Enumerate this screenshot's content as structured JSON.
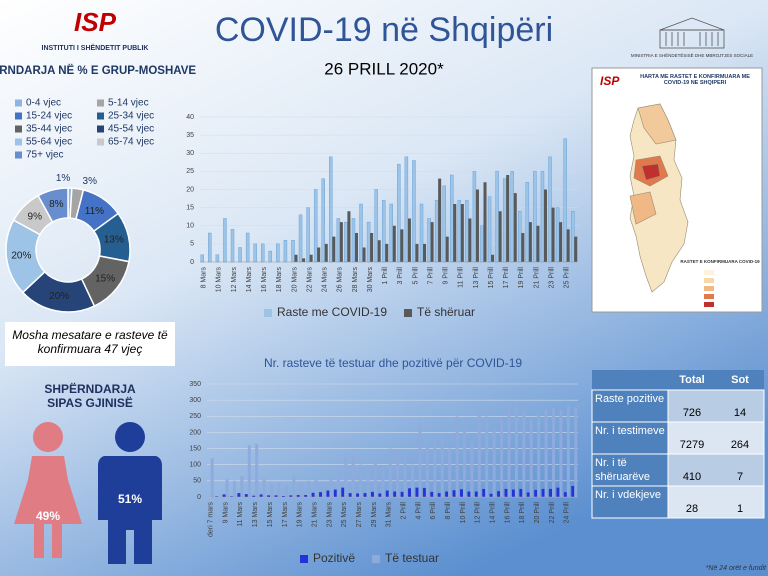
{
  "header": {
    "logo": "ISP",
    "institute": "INSTITUTI I SHËNDETIT PUBLIK",
    "title": "COVID-19 në Shqipëri",
    "date": "26 PRILL 2020*",
    "ministry": "MINISTRIA E SHËNDETËSISË DHE MBROJTJES SOCIALE"
  },
  "age_note": "Mosha mesatare e rasteve të konfirmuara 47 vjeç",
  "map": {
    "title": "HARTA ME RASTET E KONFIRMUARA ME COVID-19 NE SHQIPERI",
    "legend_title": "RASTET E KONFIRMUARA COVID-19"
  },
  "table": {
    "columns": [
      "Total",
      "Sot"
    ],
    "rows": [
      [
        "Raste pozitive",
        "726",
        "14"
      ],
      [
        "Nr. i testimeve",
        "7279",
        "264"
      ],
      [
        "Nr. i të shëruarëve",
        "410",
        "7"
      ],
      [
        "Nr. i vdekjeve",
        "28",
        "1"
      ]
    ]
  },
  "footnote": "*Në 24 orët e fundit",
  "chart_data": [
    {
      "type": "pie",
      "title": "SHPËRNDARJA NË % E GRUP-MOSHAVE",
      "categories": [
        "0-4 vjec",
        "5-14 vjec",
        "15-24 vjec",
        "25-34 vjec",
        "35-44 vjec",
        "45-54 vjec",
        "55-64 vjec",
        "65-74 vjec",
        "75+ vjec"
      ],
      "values": [
        1,
        3,
        11,
        13,
        15,
        20,
        20,
        9,
        8
      ],
      "value_labels": [
        "1%",
        "3%",
        "11%",
        "13%",
        "15%",
        "20%",
        "20%",
        "9%",
        "8%"
      ],
      "colors": [
        "#8fb3e3",
        "#a5a5a5",
        "#4472c4",
        "#255e91",
        "#636363",
        "#264478",
        "#9dc3e6",
        "#c9c9c9",
        "#698ed0"
      ]
    },
    {
      "type": "pictogram",
      "title": "SHPËRNDARJA SIPAS GJINISË",
      "values": [
        49,
        51
      ],
      "value_labels": [
        "49%",
        "51%"
      ],
      "colors": [
        "#e07c84",
        "#1f3e99"
      ]
    },
    {
      "type": "bar",
      "categories": [
        "8 Mars",
        null,
        "10 Mars",
        null,
        "12 Mars",
        null,
        "14 Mars",
        null,
        "16 Mars",
        null,
        "18 Mars",
        null,
        "20 Mars",
        null,
        "22 Mars",
        null,
        "24 Mars",
        null,
        "26 Mars",
        null,
        "28 Mars",
        null,
        "30 Mars",
        null,
        "1 Prill",
        null,
        "3 Prill",
        null,
        "5 Prill",
        null,
        "7 Prill",
        null,
        "9 Prill",
        null,
        "11 Prill",
        null,
        "13 Prill",
        null,
        "15 Prill",
        null,
        "17 Prill",
        null,
        "19 Prill",
        null,
        "21 Prill",
        null,
        "23 Prill",
        null,
        "25 Prill",
        null
      ],
      "series": [
        {
          "name": "Raste me COVID-19",
          "color": "#9dc3e6",
          "values": [
            2,
            8,
            2,
            12,
            9,
            4,
            8,
            5,
            5,
            3,
            5,
            6,
            6,
            13,
            15,
            20,
            23,
            29,
            12,
            11,
            12,
            16,
            11,
            20,
            17,
            16,
            27,
            29,
            28,
            16,
            12,
            17,
            21,
            24,
            17,
            17,
            25,
            10,
            18,
            25,
            23,
            25,
            14,
            22,
            25,
            25,
            29,
            15,
            34,
            14
          ]
        },
        {
          "name": "Të shëruar",
          "color": "#595959",
          "values": [
            0,
            0,
            0,
            0,
            0,
            0,
            0,
            0,
            0,
            0,
            0,
            0,
            2,
            1,
            2,
            4,
            5,
            7,
            11,
            14,
            8,
            4,
            8,
            6,
            5,
            10,
            9,
            12,
            5,
            5,
            11,
            23,
            7,
            16,
            16,
            12,
            20,
            22,
            2,
            14,
            24,
            19,
            8,
            11,
            10,
            20,
            15,
            11,
            9,
            7
          ]
        }
      ],
      "ylim": [
        0,
        40
      ],
      "yticks": [
        0,
        5,
        10,
        15,
        20,
        25,
        30,
        35,
        40
      ],
      "grid": true
    },
    {
      "type": "bar",
      "title": "Nr. rasteve të testuar dhe pozitivë për COVID-19",
      "categories": [
        "deri 7 mars",
        null,
        "9 Mars",
        null,
        "11 Mars",
        null,
        "13 Mars",
        null,
        "15 Mars",
        null,
        "17 Mars",
        null,
        "19 Mars",
        null,
        "21 Mars",
        null,
        "23 Mars",
        null,
        "25 Mars",
        null,
        "27 Mars",
        null,
        "29 Mars",
        null,
        "31 Mars",
        null,
        "2 Prill",
        null,
        "4 Prill",
        null,
        "6 Prill",
        null,
        "8 Prill",
        null,
        "10 Prill",
        null,
        "12 Prill",
        null,
        "14 Prill",
        null,
        "16 Prill",
        null,
        "18 Prill",
        null,
        "20 Prill",
        null,
        "22 Prill",
        null,
        "24 Prill",
        null
      ],
      "series": [
        {
          "name": "Pozitivë",
          "color": "#2433d6",
          "values": [
            0,
            2,
            8,
            2,
            12,
            9,
            4,
            8,
            5,
            5,
            3,
            5,
            6,
            6,
            13,
            15,
            20,
            23,
            29,
            12,
            11,
            12,
            16,
            11,
            20,
            17,
            16,
            27,
            29,
            28,
            16,
            12,
            17,
            21,
            24,
            17,
            17,
            25,
            10,
            18,
            25,
            23,
            25,
            14,
            22,
            25,
            25,
            29,
            15,
            34
          ]
        },
        {
          "name": "Të testuar",
          "color": "#8faadc",
          "values": [
            120,
            0,
            55,
            50,
            65,
            160,
            165,
            55,
            40,
            45,
            35,
            65,
            40,
            50,
            55,
            45,
            60,
            90,
            120,
            125,
            100,
            90,
            115,
            95,
            150,
            140,
            130,
            100,
            230,
            160,
            190,
            185,
            150,
            250,
            240,
            170,
            275,
            250,
            210,
            240,
            285,
            290,
            265,
            240,
            255,
            270,
            275,
            270,
            280,
            275
          ]
        }
      ],
      "ylim": [
        0,
        350
      ],
      "yticks": [
        0,
        50,
        100,
        150,
        200,
        250,
        300,
        350
      ],
      "grid": true
    }
  ]
}
